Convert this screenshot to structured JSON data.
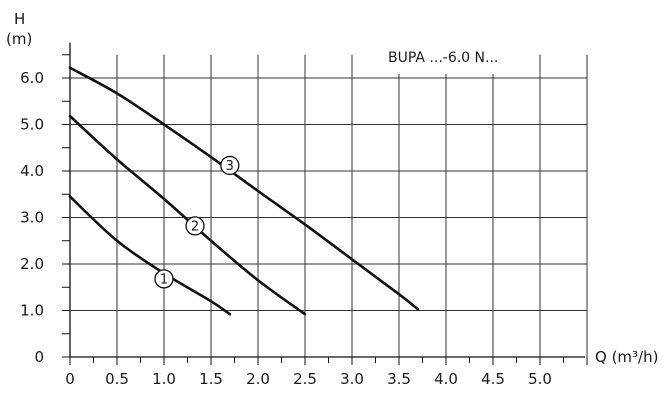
{
  "chart_data": {
    "type": "line",
    "model_label": "BUPA ...-6.0 N...",
    "xlabel": "Q (m³/h)",
    "ylabel_line1": "H",
    "ylabel_line2": "(m)",
    "xlim": [
      0,
      5.5
    ],
    "ylim": [
      0,
      6.5
    ],
    "x_ticks": [
      "0",
      "0.5",
      "1.0",
      "1.5",
      "2.0",
      "2.5",
      "3.0",
      "3.5",
      "4.0",
      "4.5",
      "5.0"
    ],
    "y_ticks": [
      "0",
      "1.0",
      "2.0",
      "3.0",
      "4.0",
      "5.0",
      "6.0"
    ],
    "grid": true,
    "series": [
      {
        "name": "1",
        "x": [
          0,
          0.5,
          1.0,
          1.5,
          1.7
        ],
        "y": [
          3.45,
          2.5,
          1.8,
          1.2,
          0.92
        ]
      },
      {
        "name": "2",
        "x": [
          0,
          0.5,
          1.0,
          1.5,
          2.0,
          2.5
        ],
        "y": [
          5.18,
          4.25,
          3.4,
          2.5,
          1.65,
          0.92
        ]
      },
      {
        "name": "3",
        "x": [
          0,
          0.5,
          1.0,
          1.5,
          2.0,
          2.5,
          3.0,
          3.5,
          3.7
        ],
        "y": [
          6.22,
          5.67,
          5.0,
          4.3,
          3.57,
          2.85,
          2.1,
          1.35,
          1.03
        ]
      }
    ],
    "curve_labels": [
      {
        "text": "1",
        "x": 1.0,
        "y": 1.68
      },
      {
        "text": "2",
        "x": 1.33,
        "y": 2.82
      },
      {
        "text": "3",
        "x": 1.7,
        "y": 4.12
      }
    ]
  }
}
